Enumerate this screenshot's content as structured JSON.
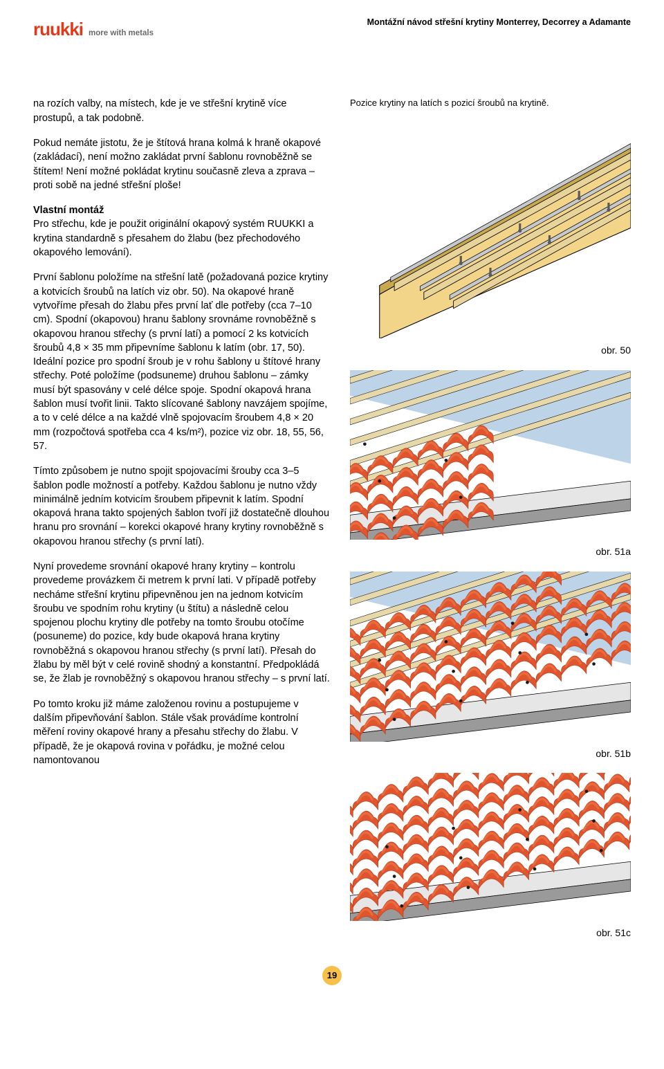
{
  "brand": {
    "logo_text": "ruukki",
    "logo_color": "#e13a1a",
    "tagline": "more with metals",
    "tagline_color": "#6a6a6a"
  },
  "header": {
    "doc_title": "Montážní návod střešní krytiny Monterrey, Decorrey a Adamante"
  },
  "body": {
    "p1": "na rozích valby, na místech, kde je ve střešní krytině více prostupů, a tak podobně.",
    "p2": "Pokud nemáte jistotu, že je štítová hrana kolmá k hraně okapové (zakládací), není možno zakládat první šablonu rovnoběžně se štítem! Není možné pokládat krytinu současně zleva a zprava – proti sobě na jedné střešní ploše!",
    "h3": "Vlastní montáž",
    "p3": "Pro střechu, kde je použit originální okapový systém RUUKKI a krytina standardně s přesahem do žlabu (bez přechodového okapového lemování).",
    "p4": "První šablonu položíme na střešní latě (požadovaná pozice krytiny a kotvicích šroubů na latích viz obr. 50). Na okapové hraně vytvoříme přesah do žlabu přes první lať dle potřeby (cca 7–10 cm). Spodní (okapovou) hranu šablony srovnáme rovnoběžně s okapovou hranou střechy (s první latí) a pomocí 2 ks kotvicích šroubů 4,8 × 35 mm připevníme šablonu k latím (obr. 17, 50). Ideální pozice pro spodní šroub je v rohu šablony u štítové hrany střechy. Poté položíme (podsuneme) druhou šablonu – zámky musí být spasovány v celé délce spoje. Spodní okapová hrana šablon musí tvořit linii. Takto slícované šablony navzájem spojíme, a to v celé délce a na každé vlně spojovacím šroubem 4,8 × 20 mm (rozpočtová spotřeba cca 4 ks/m²), pozice viz obr. 18, 55, 56, 57.",
    "p5": "Tímto způsobem je nutno spojit spojovacími šrouby cca 3–5 šablon podle možností a potřeby. Každou šablonu je nutno vždy minimálně jedním kotvicím šroubem připevnit k latím. Spodní okapová hrana takto spojených šablon tvoří již dostatečně dlouhou hranu pro srovnání – korekci okapové hrany krytiny rovnoběžně s okapovou hranou střechy (s první latí).",
    "p6": "Nyní provedeme srovnání okapové hrany krytiny – kontrolu provedeme provázkem či metrem k první lati. V případě potřeby necháme střešní krytinu připevněnou jen na jednom kotvicím šroubu ve spodním rohu krytiny (u štítu) a následně celou spojenou plochu krytiny dle potřeby na tomto šroubu otočíme (posuneme) do pozice, kdy bude okapová hrana krytiny rovnoběžná s okapovou hranou střechy (s první latí). Přesah do žlabu by měl být v celé rovině shodný a konstantní. Předpokládá se, že žlab je rovnoběžný s okapovou hranou střechy – s první latí.",
    "p7": "Po tomto kroku již máme založenou rovinu a postupujeme v dalším připevňování šablon. Stále však provádíme kontrolní měření roviny okapové hrany a přesahu střechy do žlabu. V případě, že je okapová rovina v pořádku, je možné celou namontovanou"
  },
  "figures": {
    "fig50": {
      "caption": "Pozice krytiny na latích s pozicí šroubů na krytině.",
      "label": "obr. 50",
      "colors": {
        "sheathing": "#f3d58a",
        "sheathing_edge": "#c9a94e",
        "batten": "#e8d49a",
        "batten_side": "#b89b55",
        "metal": "#c6c8ca",
        "metal_dark": "#9a9c9e",
        "screw": "#5a5a5a",
        "outline": "#000000",
        "sky": "#ffffff"
      }
    },
    "fig51a": {
      "label": "obr. 51a",
      "colors": {
        "tile": "#e0552e",
        "tile_shadow": "#b23e1d",
        "tile_highlight": "#f07a4a",
        "batten": "#e6d8a8",
        "batten_side": "#b8a560",
        "underlay": "#bcd3e8",
        "fascia_light": "#e6e6e6",
        "fascia_dark": "#9a9a9a",
        "dot": "#1a1a1a"
      }
    },
    "fig51b": {
      "label": "obr. 51b"
    },
    "fig51c": {
      "label": "obr. 51c"
    }
  },
  "page_number": "19",
  "page_badge_color": "#f6c04a"
}
